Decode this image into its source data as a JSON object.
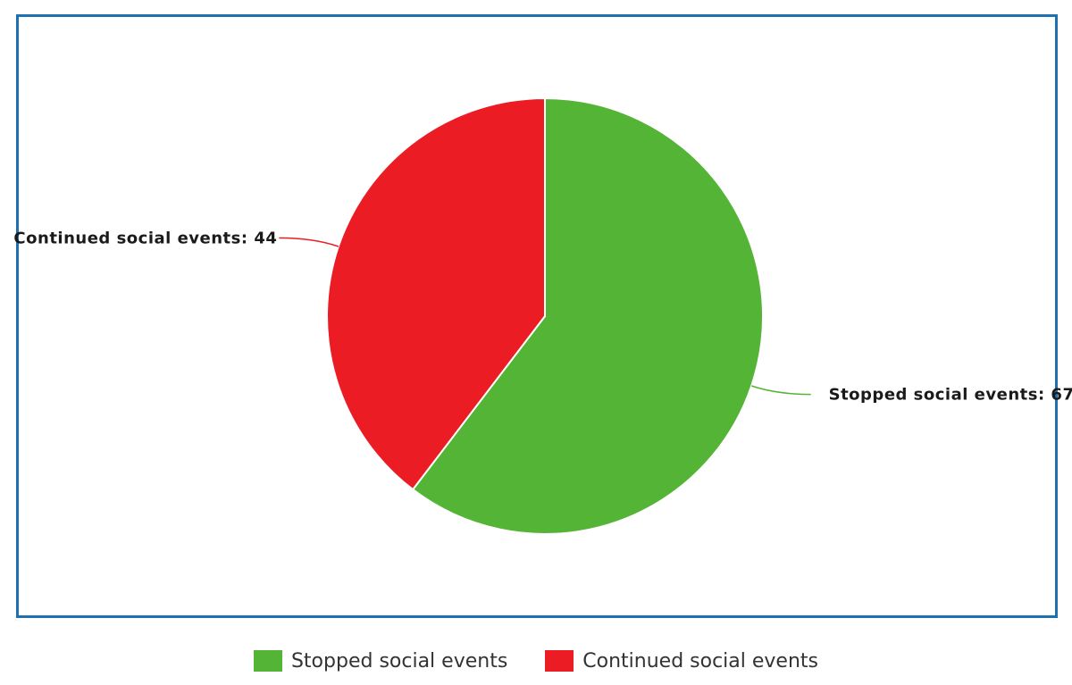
{
  "chart_data": {
    "type": "pie",
    "title": "",
    "slices": [
      {
        "label": "Stopped social events",
        "value": 67,
        "color": "#54b435",
        "data_label": "Stopped social events: 67"
      },
      {
        "label": "Continued social events",
        "value": 44,
        "color": "#ec1c24",
        "data_label": "Continued social events: 44"
      }
    ],
    "legend_position": "bottom",
    "start_angle": "12 o'clock",
    "direction": "clockwise"
  },
  "legend": {
    "items": [
      {
        "label": "Stopped social events",
        "color": "#54b435"
      },
      {
        "label": "Continued social events",
        "color": "#ec1c24"
      }
    ]
  },
  "colors": {
    "frame": "#1f70b0"
  }
}
